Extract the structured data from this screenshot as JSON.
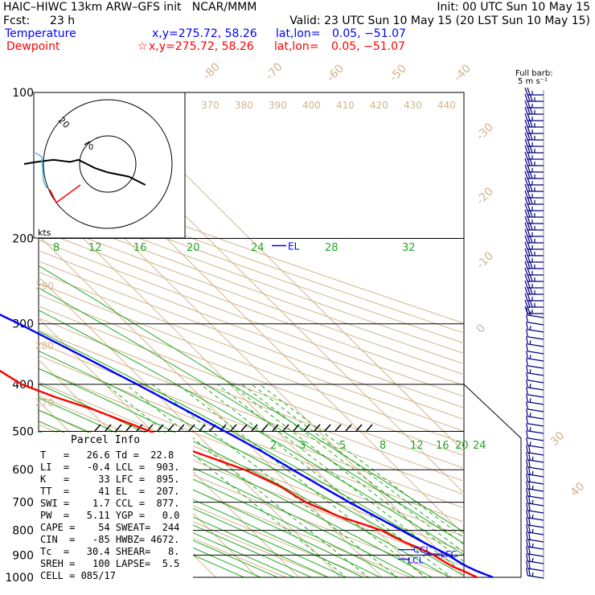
{
  "header": {
    "title": "HAIC–HIWC 13km ARW–GFS init   NCAR/MMM",
    "init": "Init: 00 UTC Sun 10 May 15",
    "fcst_label": "Fcst:",
    "fcst_value": "23 h",
    "valid": "Valid: 23 UTC Sun 10 May 15 (20 LST Sun 10 May 15)"
  },
  "legend": {
    "temperature_label": "Temperature",
    "temperature_coords": "x,y=275.72, 58.26",
    "temperature_latlon_label": "lat,lon=",
    "temperature_latlon": "0.05, −51.07",
    "dewpoint_label": "Dewpoint",
    "dewpoint_coords": "x,y=275.72, 58.26",
    "dewpoint_latlon_label": "lat,lon=",
    "dewpoint_latlon": "0.05, −51.07",
    "temperature_color": "#0000ff",
    "dewpoint_color": "#ff0000"
  },
  "barb_label": {
    "line1": "Full barb:",
    "line2": "5 m s⁻¹"
  },
  "hodograph": {
    "units": "kts",
    "ring_label": "20",
    "inner_label": "0"
  },
  "parcel_info": {
    "title": "Parcel Info",
    "rows": [
      "T   =   26.6 Td =  22.8",
      "LI  =   -0.4 LCL =  903.",
      "K   =     33 LFC =  895.",
      "TT  =     41 EL  =  207.",
      "SWI =    1.7 CCL =  877.",
      "PW  =   5.11 YGP =   0.0",
      "CAPE =    54 SWEAT=  244",
      "CIN  =   -85 HWBZ= 4672.",
      "Tc  =   30.4 SHEAR=   8.",
      "SREH =   100 LAPSE=  5.5",
      "CELL = 085/17"
    ]
  },
  "level_labels": {
    "el": "EL",
    "ccl": "CCL",
    "lcl": "LCL",
    "lfc": "LFC"
  },
  "chart_data": {
    "type": "line",
    "subtype": "skew-T log-p diagram",
    "y_axis": {
      "scale": "log",
      "ticks": [
        100,
        200,
        300,
        400,
        500,
        600,
        700,
        800,
        900,
        1000
      ]
    },
    "isotherm_labels": [
      "-80",
      "-70",
      "-60",
      "-50",
      "-40",
      "-30",
      "-20",
      "-10",
      "0",
      "30",
      "40"
    ],
    "theta_labels": [
      "370",
      "380",
      "390",
      "400",
      "410",
      "420",
      "430",
      "440"
    ],
    "theta_labels_left": [
      "290",
      "280",
      "270"
    ],
    "mixing_ratio_labels_upper": [
      "8",
      "12",
      "16",
      "20",
      "24",
      "28",
      "32"
    ],
    "mixing_ratio_labels_lower": [
      "2",
      "3",
      "5",
      "8",
      "12",
      "16",
      "20",
      "24"
    ],
    "series": [
      {
        "name": "Temperature",
        "color": "#0000ff",
        "points": [
          [
            1000,
            26.6
          ],
          [
            970,
            24.2
          ],
          [
            950,
            23
          ],
          [
            925,
            22
          ],
          [
            900,
            21.4
          ],
          [
            850,
            18.5
          ],
          [
            800,
            16
          ],
          [
            750,
            13.2
          ],
          [
            700,
            10.2
          ],
          [
            650,
            7.4
          ],
          [
            600,
            4.5
          ],
          [
            550,
            1.5
          ],
          [
            500,
            -2.5
          ],
          [
            450,
            -7
          ],
          [
            400,
            -12.3
          ],
          [
            350,
            -18.5
          ],
          [
            300,
            -26
          ],
          [
            250,
            -36
          ],
          [
            200,
            -49
          ],
          [
            175,
            -56
          ],
          [
            150,
            -63
          ],
          [
            125,
            -71
          ],
          [
            110,
            -76
          ],
          [
            100,
            -79
          ]
        ]
      },
      {
        "name": "Dewpoint",
        "color": "#ff0000",
        "points": [
          [
            1000,
            22.8
          ],
          [
            970,
            21
          ],
          [
            950,
            19.5
          ],
          [
            925,
            18.6
          ],
          [
            900,
            17.7
          ],
          [
            875,
            16.3
          ],
          [
            850,
            14.2
          ],
          [
            825,
            12.5
          ],
          [
            800,
            11.2
          ],
          [
            775,
            8
          ],
          [
            750,
            4.5
          ],
          [
            700,
            -0.2
          ],
          [
            650,
            -2.5
          ],
          [
            600,
            -7
          ],
          [
            550,
            -15
          ],
          [
            500,
            -20.5
          ],
          [
            450,
            -29
          ],
          [
            425,
            -35
          ],
          [
            400,
            -40
          ],
          [
            375,
            -42
          ],
          [
            350,
            -45
          ],
          [
            325,
            -51
          ],
          [
            300,
            -58
          ],
          [
            280,
            -64
          ],
          [
            250,
            -65
          ],
          [
            225,
            -69
          ],
          [
            200,
            -79
          ],
          [
            175,
            -80
          ],
          [
            160,
            -74
          ],
          [
            145,
            -76
          ],
          [
            130,
            -79
          ],
          [
            115,
            -85
          ],
          [
            100,
            -88
          ]
        ]
      }
    ],
    "levels": {
      "EL": 207,
      "LCL": 903,
      "LFC": 895,
      "CCL": 877
    },
    "hodograph_track": [
      [
        -40,
        0
      ],
      [
        -34,
        -1
      ],
      [
        -26,
        -2
      ],
      [
        -18,
        -1
      ],
      [
        -14,
        -2
      ],
      [
        -10,
        0
      ],
      [
        -6,
        2
      ],
      [
        0,
        4
      ],
      [
        10,
        6
      ],
      [
        18,
        10
      ]
    ],
    "grid": true
  }
}
